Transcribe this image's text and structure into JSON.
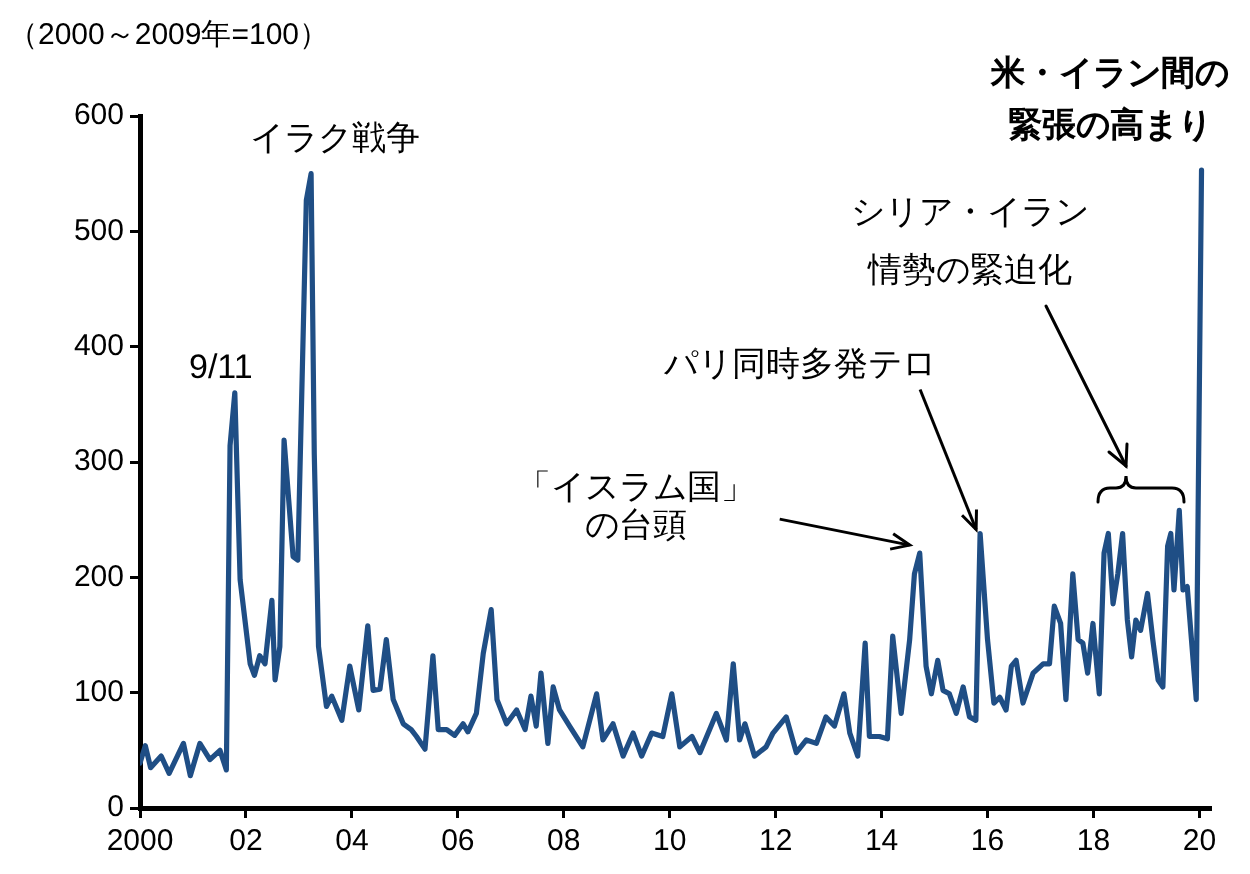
{
  "chart_data": {
    "type": "line",
    "ylabel": "（2000～2009年=100）",
    "xlim": [
      2000,
      2020.2
    ],
    "xticks": [
      {
        "value": 2000,
        "label": "2000"
      },
      {
        "value": 2002,
        "label": "02"
      },
      {
        "value": 2004,
        "label": "04"
      },
      {
        "value": 2006,
        "label": "06"
      },
      {
        "value": 2008,
        "label": "08"
      },
      {
        "value": 2010,
        "label": "10"
      },
      {
        "value": 2012,
        "label": "12"
      },
      {
        "value": 2014,
        "label": "14"
      },
      {
        "value": 2016,
        "label": "16"
      },
      {
        "value": 2018,
        "label": "18"
      },
      {
        "value": 2020,
        "label": "20"
      }
    ],
    "ylim": [
      0,
      600
    ],
    "yticks": [
      0,
      100,
      200,
      300,
      400,
      500,
      600
    ],
    "grid": false,
    "legend": false,
    "marker": "none",
    "line_style": "solid",
    "series": [
      {
        "color": "#1f4e85",
        "x": [
          2000.0,
          2000.1,
          2000.2,
          2000.4,
          2000.55,
          2000.82,
          2000.95,
          2001.13,
          2001.32,
          2001.51,
          2001.63,
          2001.7,
          2001.79,
          2001.89,
          2002.08,
          2002.16,
          2002.26,
          2002.36,
          2002.49,
          2002.55,
          2002.64,
          2002.72,
          2002.89,
          2002.98,
          2003.14,
          2003.23,
          2003.29,
          2003.37,
          2003.52,
          2003.62,
          2003.81,
          2003.96,
          2004.13,
          2004.3,
          2004.4,
          2004.53,
          2004.65,
          2004.78,
          2004.97,
          2005.12,
          2005.22,
          2005.38,
          2005.53,
          2005.63,
          2005.79,
          2005.94,
          2006.1,
          2006.19,
          2006.35,
          2006.48,
          2006.63,
          2006.74,
          2006.92,
          2007.11,
          2007.27,
          2007.38,
          2007.48,
          2007.57,
          2007.7,
          2007.8,
          2007.92,
          2008.11,
          2008.36,
          2008.62,
          2008.74,
          2008.93,
          2009.12,
          2009.31,
          2009.47,
          2009.66,
          2009.87,
          2010.04,
          2010.19,
          2010.42,
          2010.57,
          2010.88,
          2011.07,
          2011.2,
          2011.32,
          2011.42,
          2011.6,
          2011.82,
          2011.95,
          2012.2,
          2012.39,
          2012.58,
          2012.77,
          2012.95,
          2013.11,
          2013.29,
          2013.4,
          2013.55,
          2013.69,
          2013.77,
          2013.96,
          2014.11,
          2014.21,
          2014.37,
          2014.53,
          2014.62,
          2014.72,
          2014.84,
          2014.94,
          2015.06,
          2015.16,
          2015.28,
          2015.41,
          2015.54,
          2015.66,
          2015.78,
          2015.86,
          2016.0,
          2016.12,
          2016.23,
          2016.35,
          2016.45,
          2016.54,
          2016.67,
          2016.86,
          2017.05,
          2017.17,
          2017.26,
          2017.38,
          2017.48,
          2017.61,
          2017.71,
          2017.8,
          2017.89,
          2017.99,
          2018.11,
          2018.2,
          2018.28,
          2018.37,
          2018.46,
          2018.55,
          2018.64,
          2018.72,
          2018.8,
          2018.89,
          2019.02,
          2019.12,
          2019.22,
          2019.31,
          2019.4,
          2019.46,
          2019.52,
          2019.62,
          2019.69,
          2019.77,
          2019.94,
          2020.04
        ],
        "values": [
          39,
          54,
          35,
          45,
          30,
          56,
          28,
          56,
          42,
          50,
          33,
          314,
          360,
          198,
          125,
          115,
          132,
          125,
          180,
          111,
          140,
          319,
          218,
          215,
          527,
          550,
          307,
          140,
          88,
          97,
          76,
          123,
          85,
          158,
          102,
          103,
          146,
          94,
          73,
          68,
          62,
          51,
          132,
          68,
          68,
          63,
          73,
          66,
          82,
          134,
          172,
          94,
          73,
          85,
          68,
          97,
          71,
          117,
          56,
          105,
          85,
          71,
          53,
          99,
          59,
          73,
          45,
          65,
          45,
          65,
          62,
          99,
          53,
          62,
          48,
          82,
          59,
          125,
          59,
          73,
          45,
          53,
          65,
          79,
          48,
          59,
          56,
          79,
          71,
          99,
          65,
          45,
          143,
          62,
          62,
          60,
          149,
          82,
          146,
          203,
          221,
          123,
          99,
          128,
          102,
          99,
          82,
          105,
          79,
          76,
          238,
          146,
          91,
          96,
          85,
          123,
          128,
          91,
          117,
          125,
          125,
          175,
          160,
          94,
          203,
          146,
          143,
          117,
          160,
          99,
          221,
          238,
          177,
          203,
          238,
          163,
          131,
          163,
          154,
          186,
          146,
          111,
          105,
          227,
          238,
          189,
          258,
          189,
          192,
          94,
          553
        ]
      }
    ],
    "annotations": [
      {
        "text": "9/11",
        "x": 2001.79,
        "y": 360
      },
      {
        "text": "イラク戦争",
        "x": 2003.23,
        "y": 550
      },
      {
        "text": "「イスラム国」の台頭",
        "x": 2014.72,
        "y": 221
      },
      {
        "text": "パリ同時多発テロ",
        "x": 2015.86,
        "y": 238
      },
      "シリア・イラン情勢の緊迫化",
      {
        "text": "米・イラン間の緊張の高まり",
        "x": 2020.04,
        "y": 553
      }
    ]
  }
}
